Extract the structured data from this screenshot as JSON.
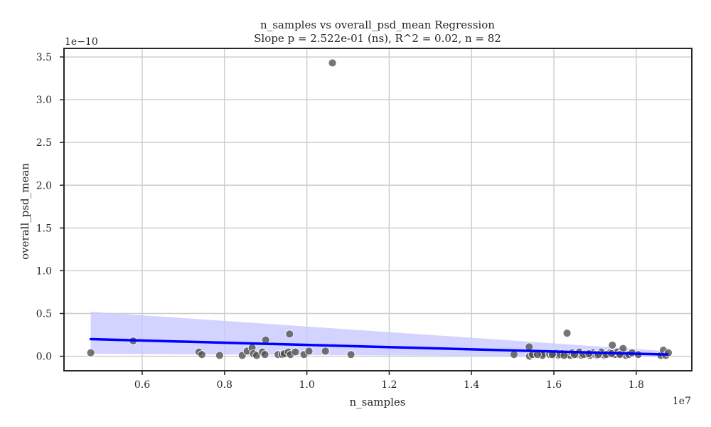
{
  "chart_data": {
    "type": "scatter",
    "title": "n_samples vs overall_psd_mean Regression",
    "subtitle": "Slope p = 2.522e-01 (ns), R^2 = 0.02, n = 82",
    "xlabel": "n_samples",
    "ylabel": "overall_psd_mean",
    "x_offset_label": "1e7",
    "y_offset_label": "1e−10",
    "xlim": [
      0.41,
      1.935
    ],
    "ylim": [
      -0.17,
      3.6
    ],
    "xticks": [
      0.6,
      0.8,
      1.0,
      1.2,
      1.4,
      1.6,
      1.8
    ],
    "xtick_labels": [
      "0.6",
      "0.8",
      "1.0",
      "1.2",
      "1.4",
      "1.6",
      "1.8"
    ],
    "yticks": [
      0.0,
      0.5,
      1.0,
      1.5,
      2.0,
      2.5,
      3.0,
      3.5
    ],
    "ytick_labels": [
      "0.0",
      "0.5",
      "1.0",
      "1.5",
      "2.0",
      "2.5",
      "3.0",
      "3.5"
    ],
    "grid": true,
    "points": [
      {
        "x": 0.475,
        "y": 0.04
      },
      {
        "x": 0.578,
        "y": 0.18
      },
      {
        "x": 0.738,
        "y": 0.05
      },
      {
        "x": 0.745,
        "y": 0.02
      },
      {
        "x": 0.788,
        "y": 0.01
      },
      {
        "x": 0.843,
        "y": 0.01
      },
      {
        "x": 0.855,
        "y": 0.06
      },
      {
        "x": 0.867,
        "y": 0.1
      },
      {
        "x": 0.87,
        "y": 0.03
      },
      {
        "x": 0.878,
        "y": 0.01
      },
      {
        "x": 0.892,
        "y": 0.05
      },
      {
        "x": 0.898,
        "y": 0.02
      },
      {
        "x": 0.9,
        "y": 0.19
      },
      {
        "x": 0.93,
        "y": 0.02
      },
      {
        "x": 0.94,
        "y": 0.02
      },
      {
        "x": 0.945,
        "y": 0.03
      },
      {
        "x": 0.955,
        "y": 0.05
      },
      {
        "x": 0.958,
        "y": 0.26
      },
      {
        "x": 0.96,
        "y": 0.02
      },
      {
        "x": 0.972,
        "y": 0.05
      },
      {
        "x": 0.993,
        "y": 0.02
      },
      {
        "x": 1.005,
        "y": 0.06
      },
      {
        "x": 1.045,
        "y": 0.06
      },
      {
        "x": 1.062,
        "y": 3.43
      },
      {
        "x": 1.107,
        "y": 0.02
      },
      {
        "x": 1.503,
        "y": 0.02
      },
      {
        "x": 1.54,
        "y": 0.11
      },
      {
        "x": 1.541,
        "y": 0.0
      },
      {
        "x": 1.548,
        "y": 0.02
      },
      {
        "x": 1.57,
        "y": 0.03
      },
      {
        "x": 1.572,
        "y": 0.01
      },
      {
        "x": 1.59,
        "y": 0.02
      },
      {
        "x": 1.598,
        "y": 0.01
      },
      {
        "x": 1.603,
        "y": 0.04
      },
      {
        "x": 1.606,
        "y": 0.02
      },
      {
        "x": 1.612,
        "y": 0.01
      },
      {
        "x": 1.62,
        "y": 0.03
      },
      {
        "x": 1.632,
        "y": 0.27
      },
      {
        "x": 1.635,
        "y": 0.02
      },
      {
        "x": 1.64,
        "y": 0.01
      },
      {
        "x": 1.648,
        "y": 0.03
      },
      {
        "x": 1.655,
        "y": 0.02
      },
      {
        "x": 1.662,
        "y": 0.05
      },
      {
        "x": 1.668,
        "y": 0.01
      },
      {
        "x": 1.675,
        "y": 0.03
      },
      {
        "x": 1.68,
        "y": 0.02
      },
      {
        "x": 1.688,
        "y": 0.01
      },
      {
        "x": 1.695,
        "y": 0.04
      },
      {
        "x": 1.7,
        "y": 0.02
      },
      {
        "x": 1.706,
        "y": 0.01
      },
      {
        "x": 1.712,
        "y": 0.03
      },
      {
        "x": 1.718,
        "y": 0.02
      },
      {
        "x": 1.724,
        "y": 0.01
      },
      {
        "x": 1.73,
        "y": 0.03
      },
      {
        "x": 1.736,
        "y": 0.04
      },
      {
        "x": 1.742,
        "y": 0.13
      },
      {
        "x": 1.748,
        "y": 0.02
      },
      {
        "x": 1.754,
        "y": 0.05
      },
      {
        "x": 1.762,
        "y": 0.03
      },
      {
        "x": 1.768,
        "y": 0.09
      },
      {
        "x": 1.775,
        "y": 0.01
      },
      {
        "x": 1.782,
        "y": 0.02
      },
      {
        "x": 1.79,
        "y": 0.04
      },
      {
        "x": 1.805,
        "y": 0.02
      },
      {
        "x": 1.86,
        "y": 0.01
      },
      {
        "x": 1.866,
        "y": 0.07
      },
      {
        "x": 1.872,
        "y": 0.01
      },
      {
        "x": 1.878,
        "y": 0.04
      },
      {
        "x": 1.6,
        "y": 0.03
      },
      {
        "x": 1.615,
        "y": 0.02
      },
      {
        "x": 1.645,
        "y": 0.04
      },
      {
        "x": 1.672,
        "y": 0.02
      },
      {
        "x": 1.685,
        "y": 0.03
      },
      {
        "x": 1.715,
        "y": 0.05
      },
      {
        "x": 1.727,
        "y": 0.02
      },
      {
        "x": 1.74,
        "y": 0.03
      },
      {
        "x": 1.76,
        "y": 0.02
      },
      {
        "x": 1.596,
        "y": 0.02
      },
      {
        "x": 1.625,
        "y": 0.01
      },
      {
        "x": 1.65,
        "y": 0.02
      },
      {
        "x": 1.708,
        "y": 0.02
      },
      {
        "x": 1.56,
        "y": 0.02
      }
    ],
    "regression_line": {
      "x": [
        0.475,
        1.875
      ],
      "y": [
        0.2,
        0.02
      ]
    },
    "confidence_band": {
      "x": [
        0.475,
        1.875
      ],
      "upper": [
        0.52,
        0.06
      ],
      "lower": [
        0.03,
        -0.01
      ]
    },
    "colors": {
      "points": "#505050",
      "point_edge": "#ffffff",
      "regression_line": "#0000ff",
      "confidence_band": "#c8c8ff",
      "grid": "#cccccc",
      "axes": "#262626"
    }
  }
}
